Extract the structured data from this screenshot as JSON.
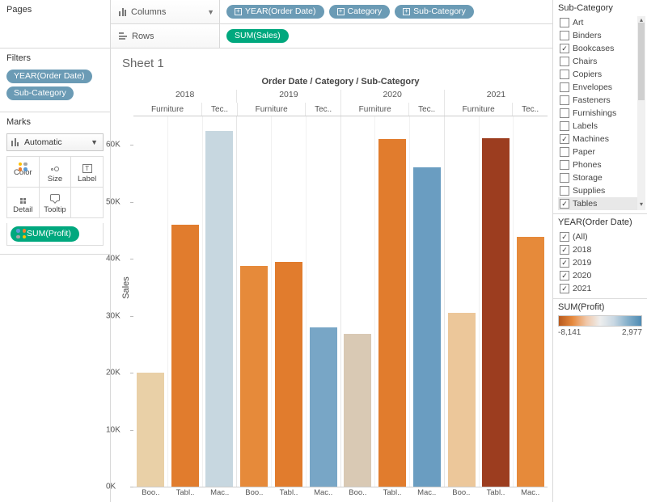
{
  "panels": {
    "pages": {
      "title": "Pages"
    },
    "filters": {
      "title": "Filters",
      "items": [
        "YEAR(Order Date)",
        "Sub-Category"
      ]
    },
    "marks": {
      "title": "Marks",
      "type": "Automatic",
      "buttons": [
        {
          "name": "color-btn",
          "label": "Color"
        },
        {
          "name": "size-btn",
          "label": "Size"
        },
        {
          "name": "label-btn",
          "label": "Label"
        },
        {
          "name": "detail-btn",
          "label": "Detail"
        },
        {
          "name": "tooltip-btn",
          "label": "Tooltip"
        }
      ],
      "color_pill": "SUM(Profit)"
    }
  },
  "shelves": {
    "columns": {
      "label": "Columns",
      "pills": [
        {
          "label": "YEAR(Order Date)",
          "expand": true
        },
        {
          "label": "Category",
          "expand": true
        },
        {
          "label": "Sub-Category",
          "expand": true
        }
      ]
    },
    "rows": {
      "label": "Rows",
      "pills": [
        {
          "label": "SUM(Sales)",
          "green": true
        }
      ]
    }
  },
  "chart": {
    "sheet_title": "Sheet 1",
    "title": "Order Date / Category / Sub-Category",
    "ylabel": "Sales",
    "ylim": [
      0,
      65000
    ],
    "yticks": [
      0,
      10000,
      20000,
      30000,
      40000,
      50000,
      60000
    ],
    "ytick_labels": [
      "0K",
      "10K",
      "20K",
      "30K",
      "40K",
      "50K",
      "60K"
    ],
    "years": [
      "2018",
      "2019",
      "2020",
      "2021"
    ],
    "cat_headers": [
      {
        "label": "Furniture",
        "w": 2
      },
      {
        "label": "Tec..",
        "w": 1
      }
    ],
    "bars": [
      {
        "year": "2018",
        "cat": "Furniture",
        "sub": "Boo..",
        "value": 20000,
        "color": "#e9d0a7"
      },
      {
        "year": "2018",
        "cat": "Furniture",
        "sub": "Tabl..",
        "value": 46000,
        "color": "#e17c2d"
      },
      {
        "year": "2018",
        "cat": "Tec",
        "sub": "Mac..",
        "value": 62500,
        "color": "#c7d7e0"
      },
      {
        "year": "2019",
        "cat": "Furniture",
        "sub": "Boo..",
        "value": 38800,
        "color": "#e68a3a"
      },
      {
        "year": "2019",
        "cat": "Furniture",
        "sub": "Tabl..",
        "value": 39500,
        "color": "#e17c2d"
      },
      {
        "year": "2019",
        "cat": "Tec",
        "sub": "Mac..",
        "value": 28000,
        "color": "#78a6c6"
      },
      {
        "year": "2020",
        "cat": "Furniture",
        "sub": "Boo..",
        "value": 26800,
        "color": "#d9c9b4"
      },
      {
        "year": "2020",
        "cat": "Furniture",
        "sub": "Tabl..",
        "value": 61000,
        "color": "#e17c2d"
      },
      {
        "year": "2020",
        "cat": "Tec",
        "sub": "Mac..",
        "value": 56000,
        "color": "#6a9dc1"
      },
      {
        "year": "2021",
        "cat": "Furniture",
        "sub": "Boo..",
        "value": 30500,
        "color": "#ecc79a"
      },
      {
        "year": "2021",
        "cat": "Furniture",
        "sub": "Tabl..",
        "value": 61200,
        "color": "#9c3d1f"
      },
      {
        "year": "2021",
        "cat": "Tec",
        "sub": "Mac..",
        "value": 43800,
        "color": "#e68a3a"
      }
    ]
  },
  "filter_cards": {
    "subcat": {
      "title": "Sub-Category",
      "options": [
        {
          "label": "Art",
          "checked": false
        },
        {
          "label": "Binders",
          "checked": false
        },
        {
          "label": "Bookcases",
          "checked": true
        },
        {
          "label": "Chairs",
          "checked": false
        },
        {
          "label": "Copiers",
          "checked": false
        },
        {
          "label": "Envelopes",
          "checked": false
        },
        {
          "label": "Fasteners",
          "checked": false
        },
        {
          "label": "Furnishings",
          "checked": false
        },
        {
          "label": "Labels",
          "checked": false
        },
        {
          "label": "Machines",
          "checked": true
        },
        {
          "label": "Paper",
          "checked": false
        },
        {
          "label": "Phones",
          "checked": false
        },
        {
          "label": "Storage",
          "checked": false
        },
        {
          "label": "Supplies",
          "checked": false
        },
        {
          "label": "Tables",
          "checked": true,
          "selected": true
        }
      ]
    },
    "year": {
      "title": "YEAR(Order Date)",
      "options": [
        {
          "label": "(All)",
          "checked": true
        },
        {
          "label": "2018",
          "checked": true
        },
        {
          "label": "2019",
          "checked": true
        },
        {
          "label": "2020",
          "checked": true
        },
        {
          "label": "2021",
          "checked": true
        }
      ]
    },
    "profit_legend": {
      "title": "SUM(Profit)",
      "min": "-8,141",
      "max": "2,977"
    }
  }
}
